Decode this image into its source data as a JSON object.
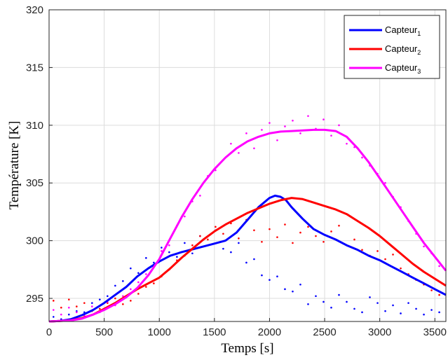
{
  "chart_data": {
    "type": "line",
    "xlabel": "Temps [s]",
    "ylabel": "Température [K]",
    "xlim": [
      0,
      3600
    ],
    "ylim": [
      293,
      320
    ],
    "xticks": [
      0,
      500,
      1000,
      1500,
      2000,
      2500,
      3000,
      3500
    ],
    "yticks": [
      295,
      300,
      305,
      310,
      315,
      320
    ],
    "grid": true,
    "legend_position": "top-right",
    "series": [
      {
        "name": "Capteur",
        "subscript": "1",
        "color": "#0000ff",
        "x": [
          0,
          100,
          200,
          300,
          400,
          500,
          600,
          700,
          800,
          900,
          1000,
          1100,
          1200,
          1300,
          1400,
          1500,
          1600,
          1700,
          1800,
          1900,
          2000,
          2050,
          2100,
          2150,
          2200,
          2300,
          2400,
          2500,
          2600,
          2700,
          2800,
          2900,
          3000,
          3100,
          3200,
          3300,
          3400,
          3500,
          3600
        ],
        "y": [
          293,
          293.05,
          293.2,
          293.55,
          294,
          294.6,
          295.3,
          296.0,
          296.9,
          297.6,
          298.2,
          298.7,
          299.0,
          299.25,
          299.5,
          299.75,
          300.0,
          300.7,
          301.8,
          302.9,
          303.7,
          303.9,
          303.8,
          303.5,
          302.9,
          301.9,
          301.0,
          300.5,
          300.1,
          299.6,
          299.2,
          298.7,
          298.3,
          297.8,
          297.3,
          296.8,
          296.3,
          295.8,
          295.3
        ]
      },
      {
        "name": "Capteur",
        "subscript": "2",
        "color": "#ff0000",
        "x": [
          0,
          100,
          200,
          300,
          400,
          500,
          600,
          700,
          800,
          900,
          1000,
          1100,
          1200,
          1300,
          1400,
          1500,
          1600,
          1700,
          1800,
          1900,
          2000,
          2100,
          2200,
          2300,
          2400,
          2500,
          2600,
          2700,
          2800,
          2900,
          3000,
          3100,
          3200,
          3300,
          3400,
          3500,
          3600
        ],
        "y": [
          293,
          293.05,
          293.1,
          293.3,
          293.6,
          294.1,
          294.6,
          295.2,
          295.8,
          296.3,
          296.8,
          297.6,
          298.5,
          299.3,
          300.1,
          300.8,
          301.4,
          301.9,
          302.4,
          302.8,
          303.2,
          303.5,
          303.7,
          303.6,
          303.3,
          303.0,
          302.7,
          302.3,
          301.7,
          301.1,
          300.4,
          299.6,
          298.8,
          298.0,
          297.3,
          296.7,
          296.1
        ]
      },
      {
        "name": "Capteur",
        "subscript": "3",
        "color": "#ff00ff",
        "x": [
          0,
          100,
          200,
          300,
          400,
          500,
          600,
          700,
          800,
          900,
          1000,
          1100,
          1200,
          1300,
          1400,
          1500,
          1600,
          1700,
          1800,
          1900,
          2000,
          2100,
          2200,
          2300,
          2400,
          2500,
          2600,
          2700,
          2800,
          2900,
          3000,
          3100,
          3200,
          3300,
          3400,
          3500,
          3600
        ],
        "y": [
          293,
          293.05,
          293.1,
          293.25,
          293.6,
          294.0,
          294.5,
          295.1,
          295.9,
          297.0,
          298.4,
          300.2,
          302.0,
          303.6,
          305.0,
          306.2,
          307.2,
          308.0,
          308.6,
          309.0,
          309.3,
          309.45,
          309.5,
          309.55,
          309.6,
          309.6,
          309.5,
          309.0,
          308.0,
          306.8,
          305.4,
          304.0,
          302.6,
          301.2,
          299.8,
          298.6,
          297.4
        ]
      }
    ],
    "scatter_points": [
      {
        "series": 0,
        "x": [
          40,
          110,
          180,
          250,
          320,
          390,
          460,
          530,
          600,
          670,
          740,
          810,
          880,
          950,
          1020,
          1090,
          1160,
          1230,
          1300,
          1370,
          1440,
          1510,
          1580,
          1650,
          1720,
          1790,
          1860,
          1930,
          2000,
          2070,
          2140,
          2210,
          2280,
          2350,
          2420,
          2490,
          2560,
          2630,
          2700,
          2770,
          2840,
          2910,
          2980,
          3050,
          3120,
          3190,
          3260,
          3330,
          3400,
          3470,
          3540
        ],
        "y": [
          293.4,
          293.2,
          293.6,
          293.9,
          293.8,
          294.6,
          294.9,
          295.2,
          296.1,
          296.5,
          297.6,
          297.2,
          298.5,
          298.1,
          299.4,
          299.0,
          298.6,
          299.8,
          298.9,
          300.4,
          299.6,
          300.9,
          299.3,
          299.0,
          299.8,
          298.1,
          298.4,
          297.0,
          296.6,
          296.9,
          295.8,
          295.6,
          296.2,
          294.5,
          295.2,
          294.7,
          294.2,
          295.3,
          294.7,
          294.1,
          293.8,
          295.1,
          294.6,
          293.9,
          294.4,
          293.7,
          294.6,
          294.1,
          293.6,
          294.0,
          293.8
        ]
      },
      {
        "series": 1,
        "x": [
          40,
          110,
          180,
          250,
          320,
          390,
          460,
          530,
          600,
          670,
          740,
          810,
          880,
          950,
          1020,
          1090,
          1160,
          1230,
          1300,
          1370,
          1440,
          1510,
          1580,
          1650,
          1720,
          1790,
          1860,
          1930,
          2000,
          2070,
          2140,
          2210,
          2280,
          2350,
          2420,
          2490,
          2560,
          2630,
          2700,
          2770,
          2840,
          2910,
          2980,
          3050,
          3120,
          3190,
          3260,
          3330,
          3400,
          3470,
          3540
        ],
        "y": [
          294.8,
          294.2,
          294.9,
          294.3,
          294.6,
          293.9,
          294.1,
          294.6,
          295.0,
          294.5,
          294.8,
          295.4,
          296.0,
          296.3,
          296.9,
          297.5,
          298.3,
          298.7,
          299.6,
          300.4,
          300.1,
          301.2,
          300.6,
          301.5,
          300.2,
          301.8,
          300.9,
          299.9,
          301.0,
          300.3,
          301.4,
          299.8,
          300.7,
          301.2,
          300.4,
          299.9,
          300.8,
          301.3,
          299.6,
          300.1,
          299.2,
          298.7,
          299.1,
          298.4,
          298.8,
          297.6,
          297.1,
          296.6,
          296.2,
          295.7,
          295.3
        ]
      },
      {
        "series": 2,
        "x": [
          40,
          110,
          180,
          250,
          320,
          390,
          460,
          530,
          600,
          670,
          740,
          810,
          880,
          950,
          1020,
          1090,
          1160,
          1230,
          1300,
          1370,
          1440,
          1510,
          1580,
          1650,
          1720,
          1790,
          1860,
          1930,
          2000,
          2070,
          2140,
          2210,
          2280,
          2350,
          2420,
          2490,
          2560,
          2630,
          2700,
          2770,
          2840,
          2910,
          2980,
          3050,
          3120,
          3190,
          3260,
          3330,
          3400,
          3470,
          3540
        ],
        "y": [
          294.0,
          293.6,
          294.2,
          293.8,
          293.5,
          294.3,
          293.8,
          294.7,
          294.4,
          295.2,
          295.8,
          296.4,
          297.1,
          297.9,
          299.1,
          299.6,
          301.3,
          302.1,
          303.4,
          303.9,
          305.6,
          306.1,
          307.0,
          308.4,
          307.6,
          309.3,
          308.0,
          309.6,
          310.2,
          308.7,
          309.9,
          310.4,
          309.3,
          310.8,
          309.7,
          310.5,
          309.1,
          310.0,
          308.4,
          308.1,
          307.2,
          306.5,
          305.8,
          305.0,
          303.8,
          302.9,
          301.7,
          300.6,
          299.5,
          298.9,
          297.8
        ]
      }
    ]
  }
}
